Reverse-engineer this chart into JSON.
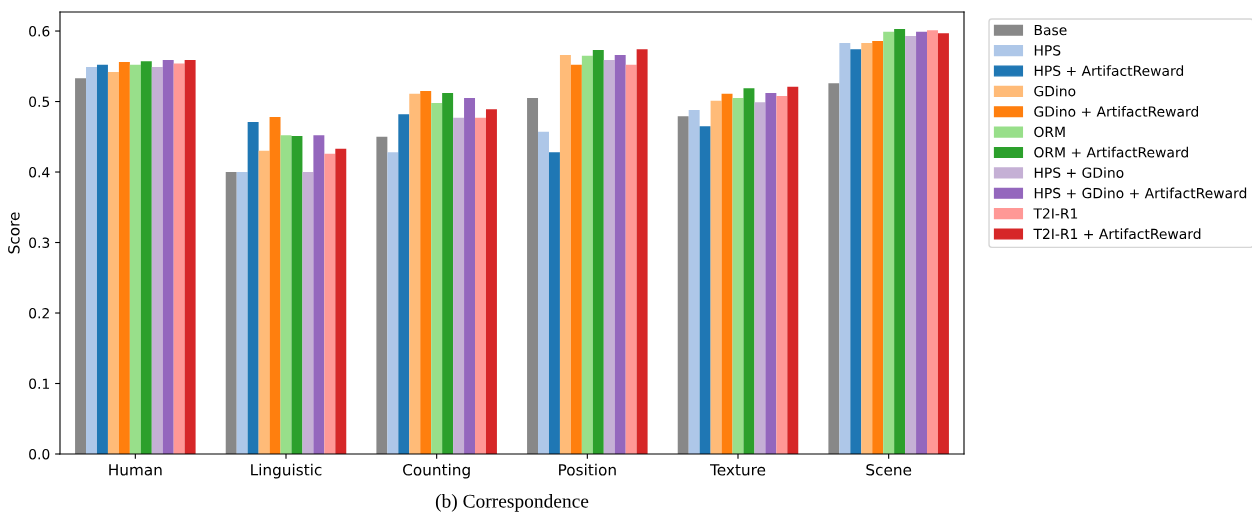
{
  "chart_data": {
    "type": "bar",
    "title": "(b) Correspondence",
    "ylabel": "Score",
    "categories": [
      "Human",
      "Linguistic",
      "Counting",
      "Position",
      "Texture",
      "Scene"
    ],
    "ylim": [
      0,
      0.627
    ],
    "yticks": [
      {
        "value": 0,
        "label": "0.0"
      },
      0.1,
      0.2,
      0.3,
      0.4,
      0.5,
      0.6
    ],
    "grid": false,
    "legend": "top right",
    "series": [
      {
        "name": "Base",
        "color": "#888888",
        "values": [
          0.533,
          0.4,
          0.45,
          0.505,
          0.479,
          0.526
        ]
      },
      {
        "name": "HPS",
        "color": "#aec7e8",
        "values": [
          0.549,
          0.4,
          0.428,
          0.457,
          0.488,
          0.583
        ]
      },
      {
        "name": "HPS + ArtifactReward",
        "color": "#1f77b4",
        "values": [
          0.552,
          0.471,
          0.482,
          0.428,
          0.465,
          0.574
        ]
      },
      {
        "name": "GDino",
        "color": "#ffbb78",
        "values": [
          0.542,
          0.43,
          0.511,
          0.566,
          0.501,
          0.583
        ]
      },
      {
        "name": "GDino + ArtifactReward",
        "color": "#ff7f0e",
        "values": [
          0.556,
          0.478,
          0.515,
          0.552,
          0.511,
          0.586
        ]
      },
      {
        "name": "ORM",
        "color": "#98df8a",
        "values": [
          0.552,
          0.452,
          0.498,
          0.565,
          0.505,
          0.599
        ]
      },
      {
        "name": "ORM + ArtifactReward",
        "color": "#2ca02c",
        "values": [
          0.557,
          0.451,
          0.512,
          0.573,
          0.519,
          0.603
        ]
      },
      {
        "name": "HPS + GDino",
        "color": "#c5b0d5",
        "values": [
          0.549,
          0.4,
          0.477,
          0.559,
          0.499,
          0.593
        ]
      },
      {
        "name": "HPS + GDino + ArtifactReward",
        "color": "#9467bd",
        "values": [
          0.559,
          0.452,
          0.505,
          0.566,
          0.512,
          0.599
        ]
      },
      {
        "name": "T2I-R1",
        "color": "#ff9896",
        "values": [
          0.554,
          0.426,
          0.477,
          0.552,
          0.508,
          0.601
        ]
      },
      {
        "name": "T2I-R1 + ArtifactReward",
        "color": "#d62728",
        "values": [
          0.559,
          0.433,
          0.489,
          0.574,
          0.521,
          0.597
        ]
      }
    ]
  }
}
